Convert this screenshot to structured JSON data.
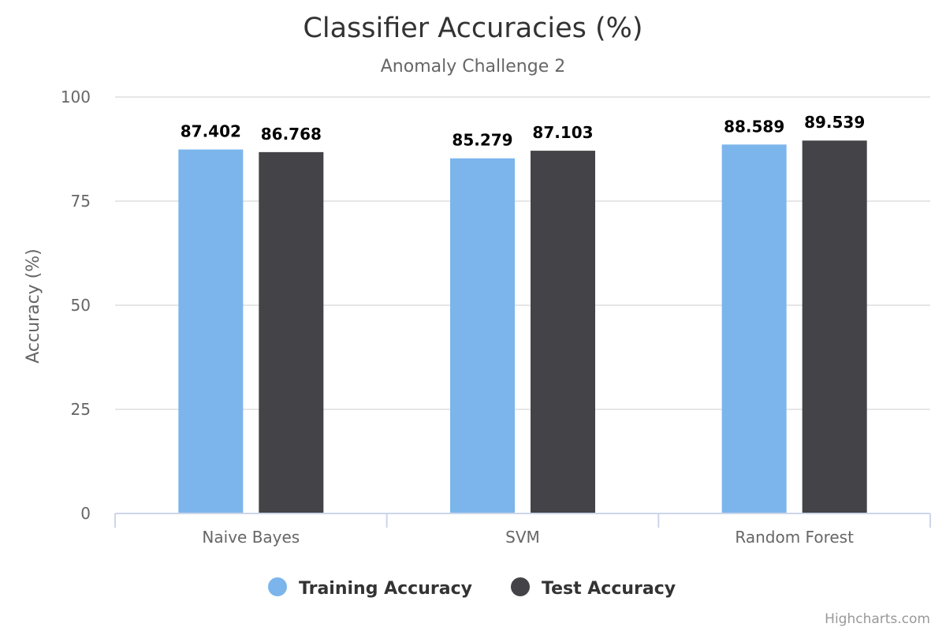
{
  "chart_data": {
    "type": "bar",
    "title": "Classifier Accuracies (%)",
    "subtitle": "Anomaly Challenge 2",
    "ylabel": "Accuracy (%)",
    "xlabel": "",
    "ylim": [
      0,
      100
    ],
    "yticks": [
      0,
      25,
      50,
      75,
      100
    ],
    "grid": true,
    "legend_position": "bottom-center",
    "categories": [
      "Naive Bayes",
      "SVM",
      "Random Forest"
    ],
    "series": [
      {
        "name": "Training Accuracy",
        "color": "#7cb5ec",
        "values": [
          87.402,
          85.279,
          88.589
        ]
      },
      {
        "name": "Test Accuracy",
        "color": "#434348",
        "values": [
          86.768,
          87.103,
          89.539
        ]
      }
    ]
  },
  "credits": "Highcharts.com"
}
